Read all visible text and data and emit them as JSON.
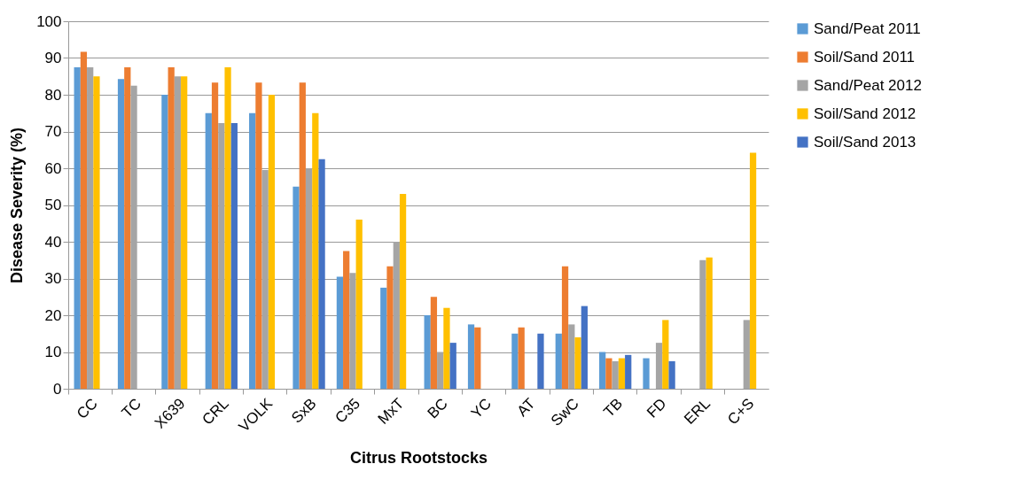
{
  "chart_data": {
    "type": "bar",
    "xlabel": "Citrus Rootstocks",
    "ylabel": "Disease Severity  (%)",
    "categories": [
      "CC",
      "TC",
      "X639",
      "CRL",
      "VOLK",
      "SxB",
      "C35",
      "MxT",
      "BC",
      "YC",
      "AT",
      "SwC",
      "TB",
      "FD",
      "ERL",
      "C+S"
    ],
    "series": [
      {
        "name": "Sand/Peat 2011",
        "color": "#5b9bd5",
        "values": [
          87.5,
          84.3,
          80,
          75,
          75,
          55,
          30.5,
          27.5,
          20,
          17.5,
          15,
          15,
          10,
          8.3,
          null,
          null
        ]
      },
      {
        "name": "Soil/Sand 2011",
        "color": "#ed7d31",
        "values": [
          91.7,
          87.5,
          87.5,
          83.3,
          83.3,
          83.3,
          37.5,
          33.3,
          25,
          16.7,
          16.7,
          33.3,
          8.3,
          null,
          null,
          null
        ]
      },
      {
        "name": "Sand/Peat 2012",
        "color": "#a5a5a5",
        "values": [
          87.5,
          82.5,
          85,
          72.3,
          59.5,
          60,
          31.5,
          40,
          10,
          null,
          null,
          17.5,
          7.5,
          12.5,
          35,
          18.7
        ]
      },
      {
        "name": "Soil/Sand 2012",
        "color": "#ffc000",
        "values": [
          85,
          null,
          85,
          87.5,
          80,
          75,
          46,
          53,
          22,
          null,
          null,
          14,
          8.3,
          18.7,
          35.7,
          64.2
        ]
      },
      {
        "name": "Soil/Sand 2013",
        "color": "#4472c4",
        "values": [
          null,
          null,
          null,
          72.3,
          null,
          62.5,
          null,
          null,
          12.5,
          null,
          15,
          22.5,
          9.2,
          7.5,
          null,
          null
        ]
      }
    ],
    "ylim": [
      0,
      100
    ],
    "yticks": [
      0,
      10,
      20,
      30,
      40,
      50,
      60,
      70,
      80,
      90,
      100
    ],
    "grid": "y",
    "legend": "right"
  }
}
